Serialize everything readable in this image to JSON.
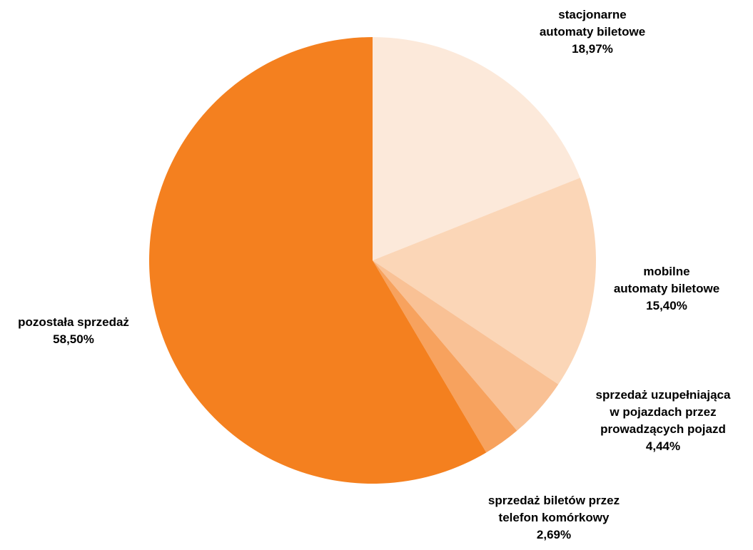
{
  "chart_data": {
    "type": "pie",
    "title": "",
    "slices": [
      {
        "label_lines": [
          "stacjonarne",
          "automaty biletowe"
        ],
        "value_label": "18,97%",
        "value": 18.97,
        "color": "#FCE9DA"
      },
      {
        "label_lines": [
          "mobilne",
          "automaty biletowe"
        ],
        "value_label": "15,40%",
        "value": 15.4,
        "color": "#FBD6B7"
      },
      {
        "label_lines": [
          "sprzedaż uzupełniająca",
          "w pojazdach przez",
          "prowadzących pojazd"
        ],
        "value_label": "4,44%",
        "value": 4.44,
        "color": "#F9C195"
      },
      {
        "label_lines": [
          "sprzedaż biletów przez",
          "telefon komórkowy"
        ],
        "value_label": "2,69%",
        "value": 2.69,
        "color": "#F7A25E"
      },
      {
        "label_lines": [
          "pozostała sprzedaż"
        ],
        "value_label": "58,50%",
        "value": 58.5,
        "color": "#F4801F"
      }
    ]
  }
}
